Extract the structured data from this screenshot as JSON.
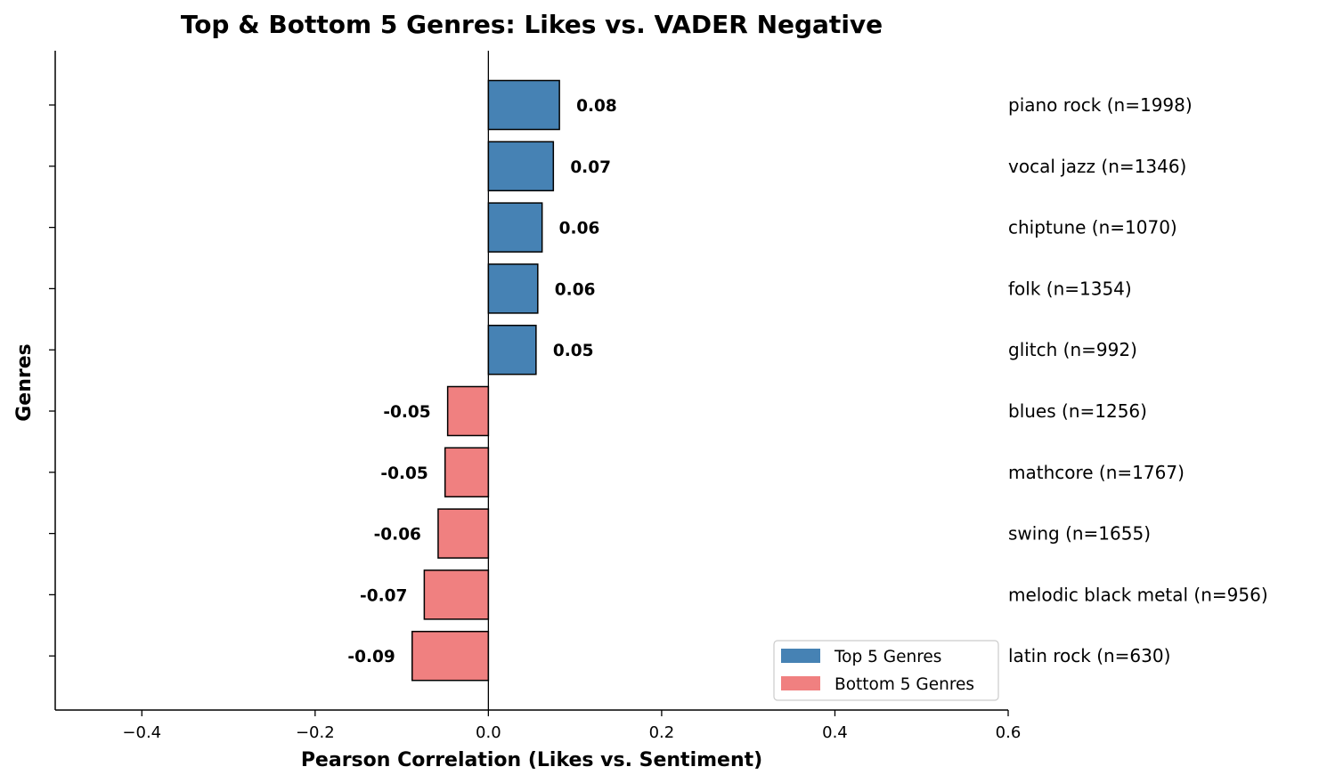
{
  "chart_data": {
    "type": "bar",
    "orientation": "horizontal",
    "title": "Top & Bottom 5 Genres: Likes vs. VADER Negative",
    "xlabel": "Pearson Correlation (Likes vs. Sentiment)",
    "ylabel": "Genres",
    "xlim": [
      -0.5,
      0.6
    ],
    "xticks": [
      -0.4,
      -0.2,
      0.0,
      0.2,
      0.4,
      0.6
    ],
    "xtick_labels": [
      "−0.4",
      "−0.2",
      "0.0",
      "0.2",
      "0.4",
      "0.6"
    ],
    "grid": false,
    "categories": [
      "piano rock (n=1998)",
      "vocal jazz (n=1346)",
      "chiptune (n=1070)",
      "folk (n=1354)",
      "glitch (n=992)",
      "blues (n=1256)",
      "mathcore (n=1767)",
      "swing (n=1655)",
      "melodic black metal (n=956)",
      "latin rock (n=630)"
    ],
    "values": [
      0.082,
      0.075,
      0.062,
      0.057,
      0.055,
      -0.047,
      -0.05,
      -0.058,
      -0.074,
      -0.088
    ],
    "value_labels": [
      "0.08",
      "0.07",
      "0.06",
      "0.06",
      "0.05",
      "-0.05",
      "-0.05",
      "-0.06",
      "-0.07",
      "-0.09"
    ],
    "groups": [
      "top",
      "top",
      "top",
      "top",
      "top",
      "bottom",
      "bottom",
      "bottom",
      "bottom",
      "bottom"
    ],
    "legend": {
      "placement": "lower-right",
      "entries": [
        {
          "key": "top",
          "label": "Top 5 Genres",
          "color": "#4682b4"
        },
        {
          "key": "bottom",
          "label": "Bottom 5 Genres",
          "color": "#f08080"
        }
      ]
    }
  }
}
